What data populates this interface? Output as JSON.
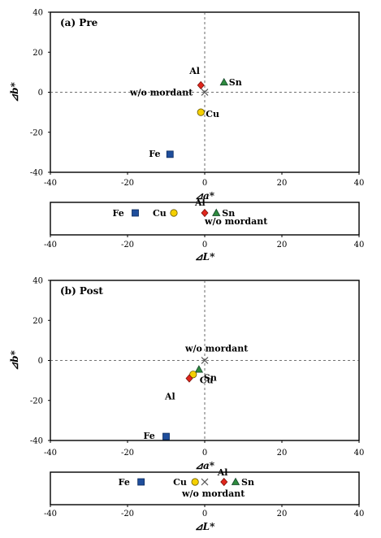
{
  "chart_data": [
    {
      "type": "scatter",
      "title": "(a) Pre",
      "xlabel": "⊿a*",
      "ylabel": "⊿b*",
      "xlim": [
        -40,
        40
      ],
      "ylim": [
        -40,
        40
      ],
      "xticks": [
        "-40",
        "-20",
        "0",
        "20",
        "40"
      ],
      "yticks": [
        "40",
        "20",
        "0",
        "-20",
        "-40"
      ],
      "grid": false,
      "reference_lines": "dashed at x=0 and y=0",
      "points": [
        {
          "label": "Al",
          "x": -1,
          "y": 3.5,
          "marker": "diamond",
          "color": "#e0261c"
        },
        {
          "label": "Sn",
          "x": 5,
          "y": 5,
          "marker": "triangle",
          "color": "#2e8b3e"
        },
        {
          "label": "w/o mordant",
          "x": 0,
          "y": 0,
          "marker": "x",
          "color": "#555555"
        },
        {
          "label": "Cu",
          "x": -1,
          "y": -10,
          "marker": "circle",
          "color": "#f5d000"
        },
        {
          "label": "Fe",
          "x": -9,
          "y": -31,
          "marker": "square",
          "color": "#1f4e9c"
        }
      ]
    },
    {
      "type": "scatter",
      "title": "",
      "xlabel": "⊿L*",
      "ylabel": "",
      "xlim": [
        -40,
        40
      ],
      "xticks": [
        "-40",
        "-20",
        "0",
        "20",
        "40"
      ],
      "grid": false,
      "points": [
        {
          "label": "Fe",
          "x": -18,
          "marker": "square",
          "color": "#1f4e9c"
        },
        {
          "label": "Cu",
          "x": -8,
          "marker": "circle",
          "color": "#f5d000"
        },
        {
          "label": "Al",
          "x": 0,
          "marker": "diamond",
          "color": "#e0261c"
        },
        {
          "label": "Sn",
          "x": 3,
          "marker": "triangle",
          "color": "#2e8b3e"
        },
        {
          "label": "w/o mordant",
          "x": 0,
          "marker": "none",
          "color": "#555555"
        }
      ]
    },
    {
      "type": "scatter",
      "title": "(b) Post",
      "xlabel": "⊿a*",
      "ylabel": "⊿b*",
      "xlim": [
        -40,
        40
      ],
      "ylim": [
        -40,
        40
      ],
      "xticks": [
        "-40",
        "-20",
        "0",
        "20",
        "40"
      ],
      "yticks": [
        "40",
        "20",
        "0",
        "-20",
        "-40"
      ],
      "grid": false,
      "reference_lines": "dashed at x=0 and y=0",
      "points": [
        {
          "label": "w/o mordant",
          "x": 0,
          "y": 0,
          "marker": "x",
          "color": "#555555"
        },
        {
          "label": "Sn",
          "x": -1.5,
          "y": -4.5,
          "marker": "triangle",
          "color": "#2e8b3e"
        },
        {
          "label": "Cu",
          "x": -3,
          "y": -7,
          "marker": "circle",
          "color": "#f5d000"
        },
        {
          "label": "Al",
          "x": -4,
          "y": -9,
          "marker": "diamond",
          "color": "#e0261c"
        },
        {
          "label": "Fe",
          "x": -10,
          "y": -38,
          "marker": "square",
          "color": "#1f4e9c"
        }
      ]
    },
    {
      "type": "scatter",
      "title": "",
      "xlabel": "⊿L*",
      "ylabel": "",
      "xlim": [
        -40,
        40
      ],
      "xticks": [
        "-40",
        "-20",
        "0",
        "20",
        "40"
      ],
      "grid": false,
      "points": [
        {
          "label": "Fe",
          "x": -16.5,
          "marker": "square",
          "color": "#1f4e9c"
        },
        {
          "label": "Cu",
          "x": -2.5,
          "marker": "circle",
          "color": "#f5d000"
        },
        {
          "label": "w/o mordant",
          "x": 0,
          "marker": "x",
          "color": "#555555"
        },
        {
          "label": "Al",
          "x": 5,
          "marker": "diamond",
          "color": "#e0261c"
        },
        {
          "label": "Sn",
          "x": 8,
          "marker": "triangle",
          "color": "#2e8b3e"
        }
      ]
    }
  ]
}
